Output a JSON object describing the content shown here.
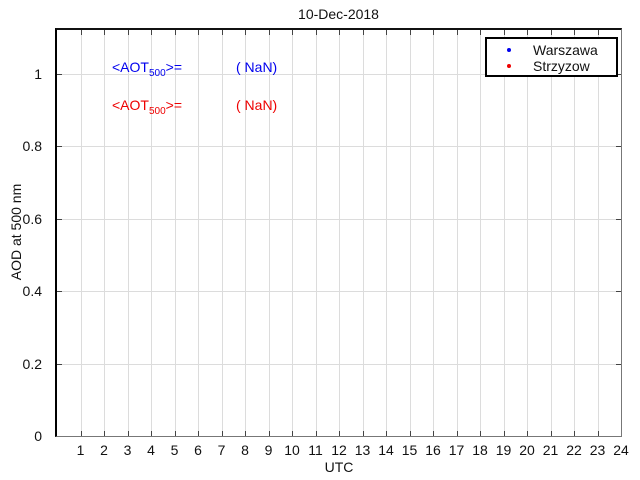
{
  "title": "10-Dec-2018",
  "axes": {
    "xlabel": "UTC",
    "ylabel": "AOD at 500 nm",
    "x_max": 24,
    "y_max_display": 1.121,
    "x_tick_labels": [
      "1",
      "2",
      "3",
      "4",
      "5",
      "6",
      "7",
      "8",
      "9",
      "10",
      "11",
      "12",
      "13",
      "14",
      "15",
      "16",
      "17",
      "18",
      "19",
      "20",
      "21",
      "22",
      "23",
      "24"
    ],
    "y_tick_labels": [
      "0",
      "0.2",
      "0.4",
      "0.6",
      "0.8",
      "1"
    ]
  },
  "legend": {
    "items": [
      {
        "label": "Warszawa",
        "color": "#0000EE",
        "marker": "dot-icon"
      },
      {
        "label": "Strzyzow",
        "color": "#EE0000",
        "marker": "dot-icon"
      }
    ]
  },
  "annotations": {
    "warszawa": {
      "prefix": "<AOT",
      "sub": "500",
      "eq": ">=",
      "value": "( NaN)",
      "color": "#0000EE"
    },
    "strzyzow": {
      "prefix": "<AOT",
      "sub": "500",
      "eq": ">=",
      "value": "( NaN)",
      "color": "#EE0000"
    }
  },
  "colors": {
    "grid": "#dcdcdc",
    "axis": "#000000",
    "text": "#111111"
  },
  "chart_data": {
    "type": "scatter",
    "title": "10-Dec-2018",
    "xlabel": "UTC",
    "ylabel": "AOD at 500 nm",
    "xlim": [
      0,
      24
    ],
    "ylim": [
      0,
      1.12
    ],
    "x_ticks": [
      1,
      2,
      3,
      4,
      5,
      6,
      7,
      8,
      9,
      10,
      11,
      12,
      13,
      14,
      15,
      16,
      17,
      18,
      19,
      20,
      21,
      22,
      23,
      24
    ],
    "y_ticks": [
      0,
      0.2,
      0.4,
      0.6,
      0.8,
      1
    ],
    "grid": true,
    "legend_position": "upper right",
    "series": [
      {
        "name": "Warszawa",
        "color": "#0000EE",
        "marker": "dot",
        "x": [],
        "y": [],
        "mean_aot500": "NaN"
      },
      {
        "name": "Strzyzow",
        "color": "#EE0000",
        "marker": "dot",
        "x": [],
        "y": [],
        "mean_aot500": "NaN"
      }
    ]
  }
}
